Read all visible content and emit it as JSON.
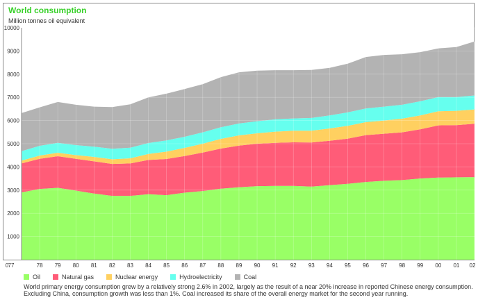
{
  "header": {
    "title": "World consumption",
    "subtitle": "Million tonnes oil equivalent"
  },
  "caption": "World primary energy consumption grew by a relatively strong 2.6% in 2002, largely as the result of a near 20% increase in reported Chinese energy consumption. Excluding China, consumption growth was less than 1%. Coal increased its share of the overall energy market for the second year running.",
  "chart_data": {
    "type": "area",
    "stacked": true,
    "title": "World consumption",
    "ylabel": "Million tonnes oil equivalent",
    "xlabel": "",
    "x": [
      "77",
      "78",
      "79",
      "80",
      "81",
      "82",
      "83",
      "84",
      "85",
      "86",
      "87",
      "88",
      "89",
      "90",
      "91",
      "92",
      "93",
      "94",
      "95",
      "96",
      "97",
      "98",
      "99",
      "00",
      "01",
      "02"
    ],
    "x_tick_labels": [
      "0",
      "77",
      "78",
      "79",
      "80",
      "81",
      "82",
      "83",
      "84",
      "85",
      "86",
      "87",
      "88",
      "89",
      "90",
      "91",
      "92",
      "93",
      "94",
      "95",
      "96",
      "97",
      "98",
      "99",
      "00",
      "01",
      "02"
    ],
    "ylim": [
      0,
      10000
    ],
    "yticks": [
      1000,
      2000,
      3000,
      4000,
      5000,
      6000,
      7000,
      8000,
      9000,
      10000
    ],
    "grid": true,
    "legend_position": "bottom",
    "series": [
      {
        "name": "Oil",
        "color": "#99ff66",
        "values": [
          2900,
          3050,
          3100,
          2980,
          2850,
          2750,
          2750,
          2820,
          2780,
          2890,
          2960,
          3060,
          3120,
          3170,
          3180,
          3180,
          3150,
          3210,
          3270,
          3350,
          3400,
          3430,
          3500,
          3540,
          3550,
          3560
        ]
      },
      {
        "name": "Natural gas",
        "color": "#ff5c78",
        "values": [
          1250,
          1300,
          1360,
          1370,
          1390,
          1380,
          1400,
          1480,
          1560,
          1580,
          1660,
          1730,
          1800,
          1830,
          1860,
          1880,
          1900,
          1920,
          1950,
          2020,
          2030,
          2060,
          2120,
          2250,
          2250,
          2300
        ]
      },
      {
        "name": "Nuclear energy",
        "color": "#ffd060",
        "values": [
          120,
          140,
          150,
          160,
          190,
          200,
          220,
          260,
          320,
          350,
          380,
          420,
          440,
          450,
          480,
          500,
          510,
          530,
          550,
          560,
          570,
          590,
          600,
          610,
          620,
          620
        ]
      },
      {
        "name": "Hydroelectricity",
        "color": "#66ffee",
        "values": [
          410,
          420,
          430,
          430,
          440,
          450,
          460,
          470,
          480,
          480,
          490,
          500,
          510,
          520,
          530,
          530,
          550,
          560,
          580,
          590,
          600,
          600,
          610,
          610,
          590,
          600
        ]
      },
      {
        "name": "Coal",
        "color": "#b3b3b3",
        "values": [
          1640,
          1660,
          1760,
          1740,
          1730,
          1800,
          1870,
          1970,
          2020,
          2060,
          2080,
          2160,
          2210,
          2180,
          2120,
          2080,
          2070,
          2050,
          2100,
          2220,
          2230,
          2180,
          2120,
          2100,
          2160,
          2330
        ]
      }
    ]
  }
}
